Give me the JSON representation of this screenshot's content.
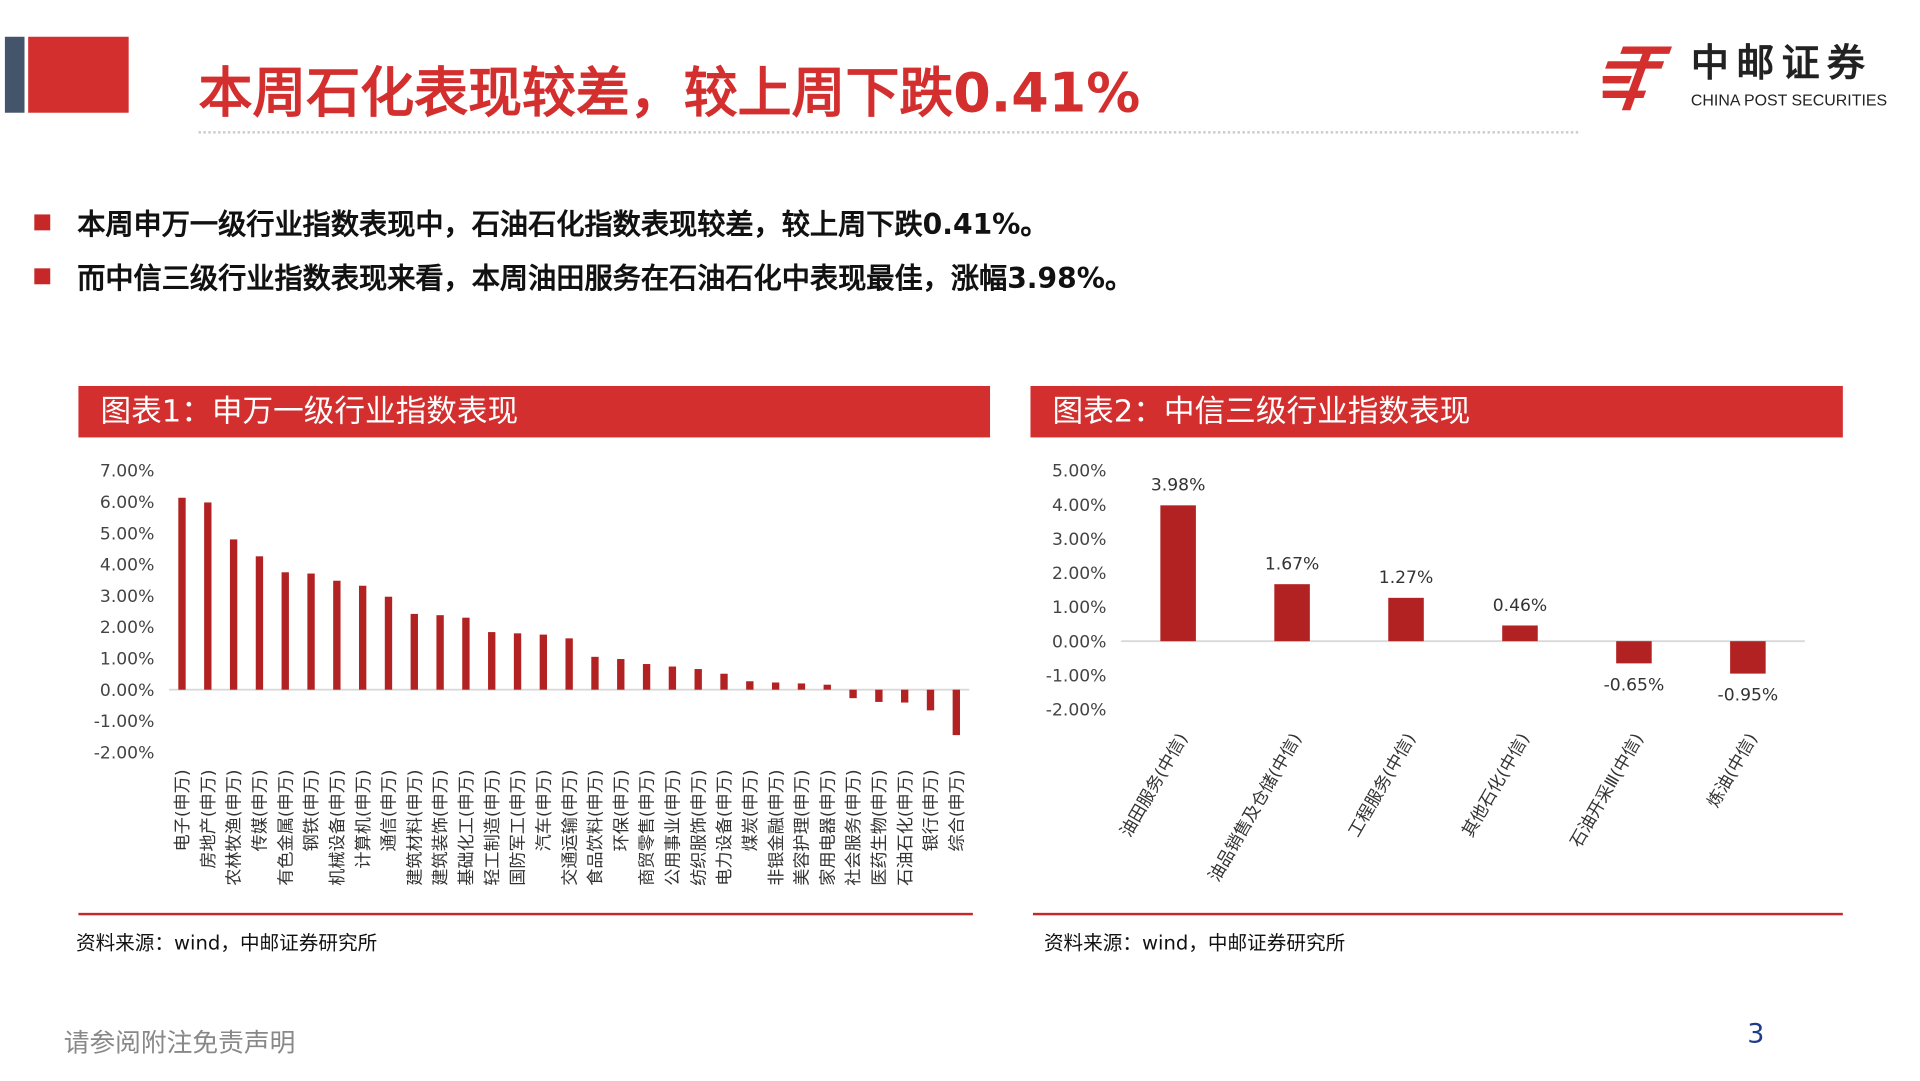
{
  "header": {
    "title": "本周石化表现较差，较上周下跌0.41%",
    "logo_cn": "中邮证券",
    "logo_en": "CHINA POST SECURITIES"
  },
  "bullets": [
    "本周申万一级行业指数表现中，石油石化指数表现较差，较上周下跌0.41%。",
    "而中信三级行业指数表现来看，本周油田服务在石油石化中表现最佳，涨幅3.98%。"
  ],
  "charts": [
    {
      "heading": "图表1：申万一级行业指数表现",
      "source": "资料来源：wind，中邮证券研究所"
    },
    {
      "heading": "图表2：中信三级行业指数表现",
      "source": "资料来源：wind，中邮证券研究所"
    }
  ],
  "footer": {
    "disclaimer": "请参阅附注免责声明",
    "page": "3"
  },
  "colors": {
    "accent": "#d32f2f",
    "bar": "#b22222"
  },
  "chart_data": [
    {
      "type": "bar",
      "title": "申万一级行业指数表现",
      "ylim": [
        -2,
        7
      ],
      "yticks": [
        "7.00%",
        "6.00%",
        "5.00%",
        "4.00%",
        "3.00%",
        "2.00%",
        "1.00%",
        "0.00%",
        "-1.00%",
        "-2.00%"
      ],
      "categories": [
        "电子(申万)",
        "房地产(申万)",
        "农林牧渔(申万)",
        "传媒(申万)",
        "有色金属(申万)",
        "钢铁(申万)",
        "机械设备(申万)",
        "计算机(申万)",
        "通信(申万)",
        "建筑材料(申万)",
        "建筑装饰(申万)",
        "基础化工(申万)",
        "轻工制造(申万)",
        "国防军工(申万)",
        "汽车(申万)",
        "交通运输(申万)",
        "食品饮料(申万)",
        "环保(申万)",
        "商贸零售(申万)",
        "公用事业(申万)",
        "纺织服饰(申万)",
        "电力设备(申万)",
        "煤炭(申万)",
        "非银金融(申万)",
        "美容护理(申万)",
        "家用电器(申万)",
        "社会服务(申万)",
        "医药生物(申万)",
        "石油石化(申万)",
        "银行(申万)",
        "综合(申万)"
      ],
      "values": [
        6.13,
        5.98,
        4.8,
        4.26,
        3.75,
        3.71,
        3.48,
        3.32,
        2.97,
        2.42,
        2.38,
        2.3,
        1.84,
        1.8,
        1.76,
        1.64,
        1.05,
        0.98,
        0.82,
        0.74,
        0.66,
        0.51,
        0.27,
        0.23,
        0.2,
        0.16,
        -0.27,
        -0.39,
        -0.41,
        -0.66,
        -1.45
      ]
    },
    {
      "type": "bar",
      "title": "中信三级行业指数表现",
      "ylim": [
        -2,
        5
      ],
      "yticks": [
        "5.00%",
        "4.00%",
        "3.00%",
        "2.00%",
        "1.00%",
        "0.00%",
        "-1.00%",
        "-2.00%"
      ],
      "categories": [
        "油田服务(中信)",
        "油品销售及仓储(中信)",
        "工程服务(中信)",
        "其他石化(中信)",
        "石油开采Ⅲ(中信)",
        "炼油(中信)"
      ],
      "values": [
        3.98,
        1.67,
        1.27,
        0.46,
        -0.65,
        -0.95
      ],
      "labels": [
        "3.98%",
        "1.67%",
        "1.27%",
        "0.46%",
        "-0.65%",
        "-0.95%"
      ]
    }
  ]
}
